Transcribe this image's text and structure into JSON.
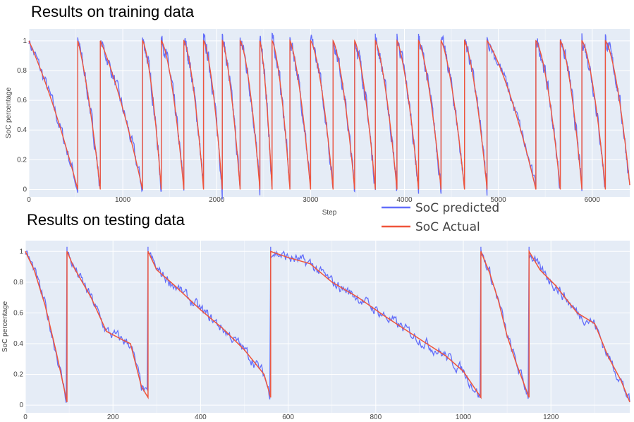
{
  "headings": {
    "training": "Results on training data",
    "testing": "Results on testing data"
  },
  "legend": [
    {
      "name": "SoC predicted",
      "color": "#636efa"
    },
    {
      "name": "SoC Actual",
      "color": "#ef553b"
    }
  ],
  "chart_data": [
    {
      "type": "line",
      "title": "Results on training data",
      "xlabel": "Step",
      "ylabel": "SoC percentage",
      "xlim": [
        0,
        6400
      ],
      "ylim": [
        -0.05,
        1.08
      ],
      "x_ticks": [
        0,
        1000,
        2000,
        3000,
        4000,
        5000,
        6000
      ],
      "x_tick_labels": [
        "0",
        "1000",
        "2000",
        "3000",
        "4000",
        "5000",
        "6000"
      ],
      "y_ticks": [
        0,
        0.2,
        0.4,
        0.6,
        0.8,
        1
      ],
      "y_tick_labels": [
        "0",
        "0.2",
        "0.4",
        "0.6",
        "0.8",
        "1"
      ],
      "grid": true,
      "background": "#e5ecf6",
      "series": [
        {
          "name": "SoC predicted",
          "color": "#636efa"
        },
        {
          "name": "SoC Actual",
          "color": "#ef553b"
        }
      ],
      "cycles": [
        {
          "start": 0,
          "end": 520,
          "shape": 1.0
        },
        {
          "start": 520,
          "end": 760,
          "shape": 1.1
        },
        {
          "start": 760,
          "end": 1210,
          "shape": 1.05
        },
        {
          "start": 1210,
          "end": 1410,
          "shape": 1.4
        },
        {
          "start": 1410,
          "end": 1650,
          "shape": 1.4
        },
        {
          "start": 1650,
          "end": 1860,
          "shape": 1.4
        },
        {
          "start": 1860,
          "end": 2060,
          "shape": 1.4
        },
        {
          "start": 2060,
          "end": 2250,
          "shape": 1.3
        },
        {
          "start": 2250,
          "end": 2460,
          "shape": 1.4
        },
        {
          "start": 2460,
          "end": 2590,
          "shape": 1.3
        },
        {
          "start": 2590,
          "end": 2780,
          "shape": 1.4
        },
        {
          "start": 2780,
          "end": 3000,
          "shape": 1.3
        },
        {
          "start": 3000,
          "end": 3240,
          "shape": 1.4
        },
        {
          "start": 3240,
          "end": 3470,
          "shape": 1.3
        },
        {
          "start": 3470,
          "end": 3690,
          "shape": 1.3
        },
        {
          "start": 3690,
          "end": 3920,
          "shape": 1.3
        },
        {
          "start": 3920,
          "end": 4150,
          "shape": 1.3
        },
        {
          "start": 4150,
          "end": 4390,
          "shape": 1.3
        },
        {
          "start": 4390,
          "end": 4640,
          "shape": 1.3
        },
        {
          "start": 4640,
          "end": 4880,
          "shape": 1.3
        },
        {
          "start": 4880,
          "end": 5400,
          "shape": 1.15
        },
        {
          "start": 5400,
          "end": 5660,
          "shape": 1.4
        },
        {
          "start": 5660,
          "end": 5890,
          "shape": 1.4
        },
        {
          "start": 5890,
          "end": 6140,
          "shape": 1.4
        },
        {
          "start": 6140,
          "end": 6400,
          "shape": 1.4,
          "end_value": 0.03
        }
      ]
    },
    {
      "type": "line",
      "title": "Results on testing data",
      "xlabel": "",
      "ylabel": "SoC percentage",
      "xlim": [
        0,
        1380
      ],
      "ylim": [
        -0.05,
        1.07
      ],
      "x_ticks": [
        0,
        200,
        400,
        600,
        800,
        1000,
        1200
      ],
      "x_tick_labels": [
        "0",
        "200",
        "400",
        "600",
        "800",
        "1000",
        "1200"
      ],
      "y_ticks": [
        0,
        0.2,
        0.4,
        0.6,
        0.8,
        1
      ],
      "y_tick_labels": [
        "0",
        "0.2",
        "0.4",
        "0.6",
        "0.8",
        "1"
      ],
      "grid": true,
      "background": "#e5ecf6",
      "series": [
        {
          "name": "SoC predicted",
          "color": "#636efa"
        },
        {
          "name": "SoC Actual",
          "color": "#ef553b"
        }
      ],
      "actual_points": [
        [
          0,
          1.0
        ],
        [
          20,
          0.88
        ],
        [
          45,
          0.65
        ],
        [
          70,
          0.35
        ],
        [
          95,
          0.02
        ],
        [
          95,
          1.0
        ],
        [
          110,
          0.9
        ],
        [
          150,
          0.7
        ],
        [
          185,
          0.48
        ],
        [
          225,
          0.42
        ],
        [
          240,
          0.4
        ],
        [
          265,
          0.12
        ],
        [
          280,
          0.05
        ],
        [
          280,
          1.0
        ],
        [
          300,
          0.88
        ],
        [
          340,
          0.78
        ],
        [
          400,
          0.62
        ],
        [
          450,
          0.5
        ],
        [
          500,
          0.36
        ],
        [
          545,
          0.2
        ],
        [
          560,
          0.05
        ],
        [
          560,
          1.0
        ],
        [
          600,
          0.96
        ],
        [
          650,
          0.92
        ],
        [
          700,
          0.8
        ],
        [
          760,
          0.7
        ],
        [
          820,
          0.58
        ],
        [
          900,
          0.43
        ],
        [
          960,
          0.32
        ],
        [
          1000,
          0.22
        ],
        [
          1040,
          0.05
        ],
        [
          1040,
          1.0
        ],
        [
          1060,
          0.86
        ],
        [
          1080,
          0.68
        ],
        [
          1100,
          0.45
        ],
        [
          1120,
          0.28
        ],
        [
          1150,
          0.05
        ],
        [
          1150,
          1.0
        ],
        [
          1175,
          0.88
        ],
        [
          1210,
          0.78
        ],
        [
          1260,
          0.6
        ],
        [
          1300,
          0.53
        ],
        [
          1330,
          0.32
        ],
        [
          1360,
          0.16
        ],
        [
          1380,
          0.02
        ]
      ]
    }
  ]
}
